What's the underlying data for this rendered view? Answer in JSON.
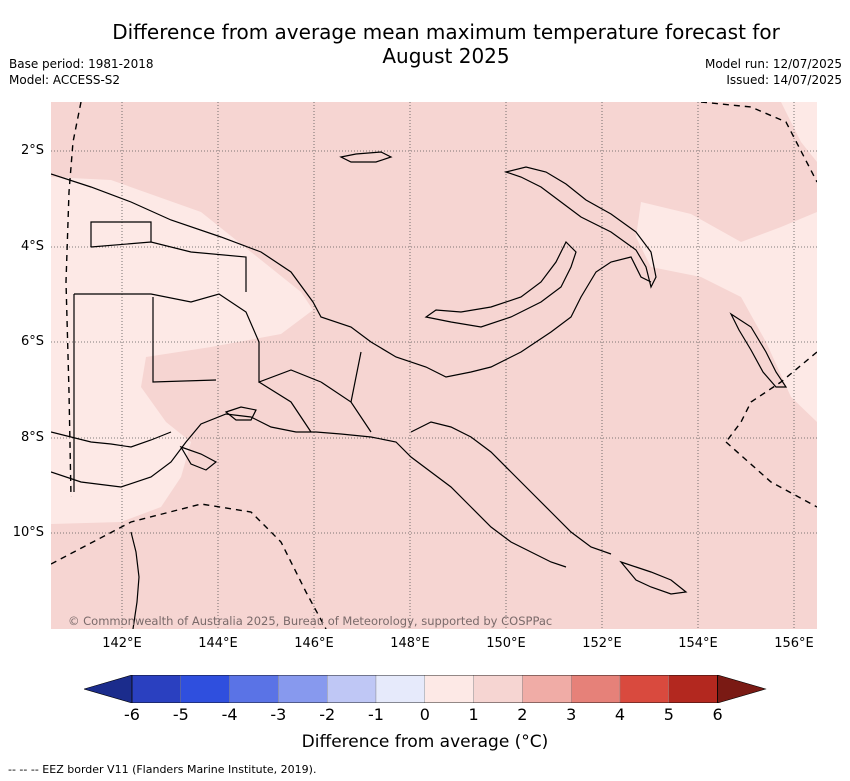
{
  "title": "Difference from average mean maximum temperature forecast for August 2025",
  "base_period": "Base period: 1981-2018",
  "model": "Model: ACCESS-S2",
  "model_run": "Model run: 12/07/2025",
  "issued": "Issued: 14/07/2025",
  "copyright": "© Commonwealth of Australia 2025, Bureau of Meteorology, supported by COSPPac",
  "lat_labels": [
    "2°S",
    "4°S",
    "6°S",
    "8°S",
    "10°S"
  ],
  "lon_labels": [
    "142°E",
    "144°E",
    "146°E",
    "148°E",
    "150°E",
    "152°E",
    "154°E",
    "156°E"
  ],
  "colorbar": {
    "title": "Difference from average (°C)",
    "ticks": [
      "-6",
      "-5",
      "-4",
      "-3",
      "-2",
      "-1",
      "0",
      "1",
      "2",
      "3",
      "4",
      "5",
      "6"
    ],
    "colors": [
      "#1b2c8c",
      "#2a40c0",
      "#2f4fde",
      "#5a73e6",
      "#8799ee",
      "#bfc7f5",
      "#e6eafb",
      "#fde9e6",
      "#f6d5d2",
      "#f0aca6",
      "#e68179",
      "#d94a3e",
      "#b3281f",
      "#7a1a14"
    ],
    "range_color_light": "#fde9e6",
    "range_color_mid": "#f6d5d2"
  },
  "footnote": "--  --  -- EEZ border V11 (Flanders Marine Institute, 2019)."
}
